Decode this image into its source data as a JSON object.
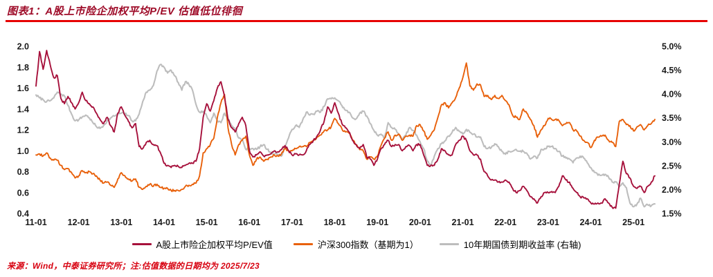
{
  "header": {
    "title": "图表1：A股上市险企加权平均P/EV 估值低位徘徊"
  },
  "footer": {
    "text": "来源：Wind，中泰证券研究所；注:估值数据的日期均为 2025/7/23"
  },
  "colors": {
    "title": "#9E0B28",
    "rule": "#E60000",
    "footer": "#D7000F",
    "pev_line": "#A6103B",
    "csi300_line": "#E8600A",
    "yield_line": "#BDBDBD"
  },
  "chart_data": {
    "type": "line",
    "title": "A股上市险企加权平均P/EV 估值低位徘徊",
    "x_start": "2011-01",
    "x_end": "2025-07",
    "x_frequency": "monthly",
    "x_labels": [
      "11-01",
      "12-01",
      "13-01",
      "14-01",
      "15-01",
      "16-01",
      "17-01",
      "18-01",
      "19-01",
      "20-01",
      "21-01",
      "22-01",
      "23-01",
      "24-01",
      "25-01"
    ],
    "left_axis": {
      "min": 0.4,
      "max": 2.0,
      "tick_labels": [
        "0.4",
        "0.6",
        "0.8",
        "1.0",
        "1.2",
        "1.4",
        "1.6",
        "1.8",
        "2.0"
      ]
    },
    "right_axis": {
      "min": 1.5,
      "max": 5.0,
      "tick_labels": [
        "1.5%",
        "2.0%",
        "2.5%",
        "3.0%",
        "3.5%",
        "4.0%",
        "4.5%",
        "5.0%"
      ]
    },
    "grid": false,
    "legend_position": "bottom",
    "series": [
      {
        "id": "pev",
        "name": "A股上市险企加权平均P/EV值",
        "axis": "left",
        "color": "#A6103B",
        "values": [
          1.62,
          1.95,
          1.78,
          1.96,
          1.82,
          1.7,
          1.72,
          1.5,
          1.45,
          1.52,
          1.46,
          1.4,
          1.46,
          1.56,
          1.48,
          1.45,
          1.42,
          1.36,
          1.3,
          1.26,
          1.32,
          1.24,
          1.18,
          1.36,
          1.42,
          1.34,
          1.28,
          1.22,
          1.26,
          1.04,
          1.02,
          1.08,
          1.1,
          1.06,
          1.05,
          0.98,
          0.88,
          0.86,
          0.84,
          0.86,
          0.85,
          0.84,
          0.86,
          0.88,
          0.88,
          0.9,
          1.02,
          1.32,
          1.45,
          1.38,
          1.48,
          1.6,
          1.66,
          1.52,
          1.3,
          1.22,
          1.18,
          1.26,
          1.32,
          1.24,
          1.0,
          0.94,
          0.96,
          0.99,
          0.95,
          0.96,
          0.97,
          1.0,
          0.99,
          1.01,
          1.05,
          1.0,
          0.96,
          0.97,
          0.96,
          0.96,
          1.0,
          1.06,
          1.1,
          1.14,
          1.2,
          1.28,
          1.42,
          1.36,
          1.46,
          1.36,
          1.26,
          1.22,
          1.18,
          1.1,
          1.06,
          1.02,
          1.06,
          0.94,
          0.92,
          0.86,
          0.92,
          1.02,
          1.06,
          1.1,
          1.04,
          1.06,
          1.06,
          1.0,
          1.04,
          1.05,
          1.0,
          1.06,
          1.06,
          0.96,
          0.86,
          0.86,
          0.86,
          0.92,
          1.02,
          1.0,
          0.96,
          0.96,
          1.06,
          1.1,
          1.14,
          1.1,
          1.0,
          0.96,
          0.96,
          0.92,
          0.8,
          0.76,
          0.72,
          0.72,
          0.7,
          0.7,
          0.72,
          0.7,
          0.64,
          0.6,
          0.62,
          0.66,
          0.62,
          0.56,
          0.54,
          0.5,
          0.56,
          0.6,
          0.6,
          0.61,
          0.6,
          0.66,
          0.76,
          0.72,
          0.7,
          0.64,
          0.6,
          0.56,
          0.55,
          0.54,
          0.5,
          0.49,
          0.5,
          0.5,
          0.54,
          0.5,
          0.46,
          0.45,
          0.68,
          0.9,
          0.78,
          0.74,
          0.66,
          0.64,
          0.66,
          0.6,
          0.66,
          0.7,
          0.76
        ]
      },
      {
        "id": "csi300",
        "name": "沪深300指数（基期为1）",
        "axis": "left",
        "color": "#E8600A",
        "values": [
          0.96,
          0.97,
          0.95,
          0.98,
          0.93,
          0.91,
          0.91,
          0.86,
          0.82,
          0.83,
          0.79,
          0.74,
          0.76,
          0.81,
          0.79,
          0.8,
          0.78,
          0.76,
          0.72,
          0.69,
          0.7,
          0.67,
          0.65,
          0.73,
          0.79,
          0.76,
          0.73,
          0.71,
          0.73,
          0.65,
          0.63,
          0.66,
          0.68,
          0.66,
          0.68,
          0.65,
          0.64,
          0.64,
          0.62,
          0.62,
          0.62,
          0.63,
          0.66,
          0.67,
          0.68,
          0.69,
          0.76,
          0.98,
          1.02,
          1.06,
          1.12,
          1.32,
          1.46,
          1.54,
          1.22,
          1.06,
          0.96,
          1.06,
          1.1,
          1.14,
          0.96,
          0.86,
          0.92,
          0.94,
          0.9,
          0.92,
          0.94,
          0.96,
          0.95,
          0.97,
          1.02,
          1.0,
          1.0,
          1.02,
          1.04,
          1.04,
          1.04,
          1.08,
          1.1,
          1.13,
          1.15,
          1.19,
          1.2,
          1.23,
          1.31,
          1.26,
          1.21,
          1.18,
          1.17,
          1.1,
          1.06,
          1.01,
          1.0,
          0.92,
          0.94,
          0.92,
          0.95,
          1.05,
          1.12,
          1.18,
          1.1,
          1.15,
          1.16,
          1.1,
          1.14,
          1.15,
          1.14,
          1.24,
          1.25,
          1.19,
          1.11,
          1.15,
          1.2,
          1.32,
          1.44,
          1.46,
          1.41,
          1.46,
          1.51,
          1.6,
          1.7,
          1.84,
          1.62,
          1.58,
          1.64,
          1.63,
          1.52,
          1.53,
          1.49,
          1.53,
          1.5,
          1.53,
          1.48,
          1.44,
          1.34,
          1.32,
          1.3,
          1.4,
          1.36,
          1.3,
          1.24,
          1.13,
          1.2,
          1.24,
          1.31,
          1.3,
          1.3,
          1.29,
          1.24,
          1.26,
          1.27,
          1.2,
          1.19,
          1.14,
          1.1,
          1.08,
          1.03,
          1.1,
          1.13,
          1.14,
          1.15,
          1.1,
          1.08,
          1.04,
          1.28,
          1.3,
          1.25,
          1.24,
          1.19,
          1.23,
          1.25,
          1.2,
          1.24,
          1.26,
          1.3
        ]
      },
      {
        "id": "yield10y",
        "name": "10年期国债到期收益率 (右轴)",
        "axis": "right",
        "color": "#BDBDBD",
        "values": [
          3.98,
          3.92,
          3.88,
          3.84,
          3.86,
          3.92,
          4.04,
          4.0,
          3.96,
          3.76,
          3.58,
          3.44,
          3.46,
          3.52,
          3.56,
          3.5,
          3.4,
          3.32,
          3.28,
          3.34,
          3.44,
          3.5,
          3.54,
          3.58,
          3.6,
          3.59,
          3.55,
          3.44,
          3.44,
          3.58,
          3.84,
          4.04,
          4.08,
          4.18,
          4.48,
          4.62,
          4.56,
          4.44,
          4.5,
          4.38,
          4.24,
          4.08,
          4.26,
          4.2,
          4.08,
          3.78,
          3.62,
          3.64,
          3.54,
          3.4,
          3.6,
          3.44,
          3.4,
          3.6,
          3.48,
          3.34,
          3.28,
          3.08,
          3.04,
          2.84,
          2.86,
          2.86,
          2.84,
          2.9,
          2.94,
          2.84,
          2.78,
          2.74,
          2.74,
          2.7,
          2.9,
          3.08,
          3.26,
          3.34,
          3.3,
          3.46,
          3.62,
          3.56,
          3.58,
          3.64,
          3.62,
          3.74,
          3.9,
          3.9,
          3.92,
          3.86,
          3.76,
          3.66,
          3.62,
          3.5,
          3.48,
          3.6,
          3.64,
          3.54,
          3.38,
          3.24,
          3.14,
          3.16,
          3.08,
          3.4,
          3.3,
          3.26,
          3.16,
          3.04,
          3.14,
          3.3,
          3.24,
          3.14,
          3.0,
          2.86,
          2.6,
          2.5,
          2.7,
          2.86,
          2.96,
          3.02,
          3.12,
          3.2,
          3.3,
          3.22,
          3.16,
          3.26,
          3.2,
          3.16,
          3.1,
          3.1,
          2.9,
          2.86,
          2.88,
          2.96,
          2.9,
          2.8,
          2.74,
          2.8,
          2.8,
          2.84,
          2.8,
          2.8,
          2.76,
          2.64,
          2.7,
          2.66,
          2.84,
          2.86,
          2.9,
          2.9,
          2.86,
          2.8,
          2.7,
          2.66,
          2.64,
          2.56,
          2.66,
          2.7,
          2.66,
          2.56,
          2.46,
          2.36,
          2.3,
          2.3,
          2.32,
          2.26,
          2.16,
          2.16,
          2.06,
          2.14,
          2.04,
          1.72,
          1.64,
          1.7,
          1.82,
          1.64,
          1.68,
          1.66,
          1.7
        ]
      }
    ]
  }
}
